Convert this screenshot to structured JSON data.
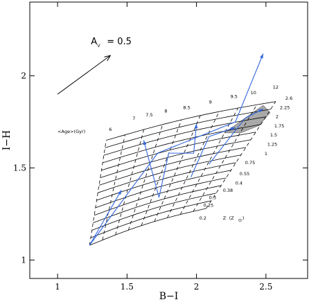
{
  "chart_data": {
    "type": "line",
    "xlabel": "B−I",
    "ylabel": "I−H",
    "xlim": [
      0.8,
      2.8
    ],
    "ylim": [
      0.9,
      2.4
    ],
    "xticks": [
      1,
      1.5,
      2,
      2.5
    ],
    "xtick_labels": [
      "1",
      "1.5",
      "2",
      "2.5"
    ],
    "yticks": [
      1,
      1.5,
      2
    ],
    "ytick_labels": [
      "1",
      "1.5",
      "2"
    ],
    "extinction_vector": {
      "label_main": "A",
      "label_sub": "V",
      "label_value": "= 0.5",
      "from": [
        1.0,
        1.9
      ],
      "to": [
        1.38,
        2.11
      ]
    },
    "age_header": "<Age>(Gyr)",
    "age_labels": [
      {
        "text": "6",
        "x": 1.38,
        "y": 1.7
      },
      {
        "text": "7",
        "x": 1.55,
        "y": 1.76
      },
      {
        "text": "7.5",
        "x": 1.66,
        "y": 1.78
      },
      {
        "text": "8",
        "x": 1.78,
        "y": 1.8
      },
      {
        "text": "8.5",
        "x": 1.93,
        "y": 1.82
      },
      {
        "text": "9",
        "x": 2.1,
        "y": 1.85
      },
      {
        "text": "9.5",
        "x": 2.27,
        "y": 1.88
      },
      {
        "text": "10",
        "x": 2.41,
        "y": 1.9
      },
      {
        "text": "12",
        "x": 2.57,
        "y": 1.93
      }
    ],
    "metallicity_labels": [
      {
        "text": "2.6",
        "x": 2.64,
        "y": 1.87
      },
      {
        "text": "2.25",
        "x": 2.6,
        "y": 1.82
      },
      {
        "text": "2",
        "x": 2.57,
        "y": 1.77
      },
      {
        "text": "1.75",
        "x": 2.56,
        "y": 1.72
      },
      {
        "text": "1.5",
        "x": 2.53,
        "y": 1.67
      },
      {
        "text": "1.25",
        "x": 2.51,
        "y": 1.62
      },
      {
        "text": "1",
        "x": 2.49,
        "y": 1.57
      },
      {
        "text": "0.75",
        "x": 2.35,
        "y": 1.52
      },
      {
        "text": "0.55",
        "x": 2.31,
        "y": 1.46
      },
      {
        "text": "0.4",
        "x": 2.28,
        "y": 1.41
      },
      {
        "text": "0.38",
        "x": 2.19,
        "y": 1.37
      },
      {
        "text": "0.3",
        "x": 2.09,
        "y": 1.33
      },
      {
        "text": "0.25",
        "x": 2.05,
        "y": 1.29
      },
      {
        "text": "0.2",
        "x": 2.02,
        "y": 1.22
      }
    ],
    "metallicity_header": {
      "text": "Z",
      "paren_open": "(Z",
      "sub": "⊙",
      "paren_close": ")"
    },
    "grid": {
      "age_rows": 15,
      "age_cols": 10,
      "corners": {
        "bottom_left": [
          1.23,
          1.08
        ],
        "bottom_right": [
          2.07,
          1.28
        ],
        "top_left": [
          1.35,
          1.65
        ],
        "top_right": [
          2.57,
          1.86
        ]
      }
    },
    "model_tracks": [
      {
        "points": [
          [
            1.23,
            1.08
          ],
          [
            1.46,
            1.38
          ]
        ]
      },
      {
        "points": [
          [
            1.23,
            1.08
          ],
          [
            1.72,
            1.58
          ],
          [
            2.28,
            1.75
          ],
          [
            2.48,
            2.12
          ]
        ]
      },
      {
        "points": [
          [
            1.73,
            1.34
          ],
          [
            1.62,
            1.65
          ]
        ]
      },
      {
        "points": [
          [
            1.73,
            1.34
          ],
          [
            1.8,
            1.58
          ],
          [
            1.98,
            1.58
          ],
          [
            2.0,
            1.74
          ]
        ]
      },
      {
        "points": [
          [
            1.96,
            1.45
          ],
          [
            2.09,
            1.67
          ],
          [
            2.28,
            1.72
          ]
        ]
      },
      {
        "points": [
          [
            2.09,
            1.52
          ],
          [
            2.35,
            1.77
          ],
          [
            2.48,
            1.82
          ]
        ]
      }
    ],
    "shaded_region": [
      [
        2.2,
        1.69
      ],
      [
        2.48,
        1.84
      ],
      [
        2.53,
        1.8
      ],
      [
        2.45,
        1.73
      ],
      [
        2.32,
        1.69
      ]
    ],
    "colors": {
      "track": "#3366dd",
      "grid": "#000000",
      "shaded": "#a9a9a9"
    }
  }
}
